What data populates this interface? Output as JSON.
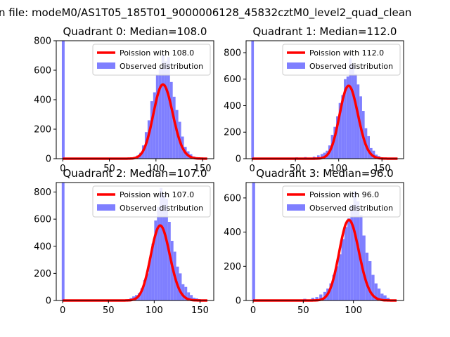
{
  "suptitle": "n file: modeM0/AS1T05_185T01_9000006128_45832cztM0_level2_quad_clean",
  "colors": {
    "hist": "#7f7fff",
    "curve": "#ff0000"
  },
  "chart_data": [
    {
      "type": "histogram",
      "title": "Quadrant 0: Median=108.0",
      "median": 108.0,
      "xlim": [
        -7,
        162
      ],
      "ylim": [
        0,
        800
      ],
      "xticks": [
        0,
        50,
        100,
        150
      ],
      "yticks": [
        0,
        200,
        400,
        600,
        800
      ],
      "legend": [
        "Poission with 108.0",
        "Observed distribution"
      ],
      "legend_position": "upper right",
      "zero_bin": 800,
      "bin_width": 3,
      "bins": [
        [
          70,
          5
        ],
        [
          73,
          8
        ],
        [
          76,
          12
        ],
        [
          79,
          22
        ],
        [
          82,
          40
        ],
        [
          85,
          90
        ],
        [
          88,
          180
        ],
        [
          91,
          260
        ],
        [
          94,
          390
        ],
        [
          97,
          450
        ],
        [
          100,
          570
        ],
        [
          103,
          610
        ],
        [
          106,
          700
        ],
        [
          109,
          660
        ],
        [
          112,
          690
        ],
        [
          115,
          520
        ],
        [
          118,
          420
        ],
        [
          121,
          330
        ],
        [
          124,
          250
        ],
        [
          127,
          150
        ],
        [
          130,
          80
        ],
        [
          133,
          50
        ],
        [
          136,
          30
        ],
        [
          139,
          15
        ],
        [
          142,
          10
        ],
        [
          145,
          5
        ],
        [
          148,
          3
        ],
        [
          151,
          2
        ]
      ]
    },
    {
      "type": "histogram",
      "title": "Quadrant 1: Median=112.0",
      "median": 112.0,
      "xlim": [
        -7,
        175
      ],
      "ylim": [
        0,
        890
      ],
      "xticks": [
        0,
        50,
        100,
        150
      ],
      "yticks": [
        0,
        200,
        400,
        600,
        800
      ],
      "legend": [
        "Poission with 112.0",
        "Observed distribution"
      ],
      "legend_position": "upper right",
      "zero_bin": 890,
      "bin_width": 3,
      "bins": [
        [
          20,
          3
        ],
        [
          30,
          5
        ],
        [
          40,
          8
        ],
        [
          50,
          10
        ],
        [
          60,
          12
        ],
        [
          70,
          15
        ],
        [
          75,
          25
        ],
        [
          79,
          35
        ],
        [
          82,
          45
        ],
        [
          85,
          60
        ],
        [
          88,
          100
        ],
        [
          91,
          180
        ],
        [
          94,
          240
        ],
        [
          97,
          320
        ],
        [
          100,
          420
        ],
        [
          103,
          480
        ],
        [
          106,
          600
        ],
        [
          109,
          620
        ],
        [
          112,
          760
        ],
        [
          115,
          710
        ],
        [
          118,
          640
        ],
        [
          121,
          560
        ],
        [
          124,
          470
        ],
        [
          127,
          360
        ],
        [
          130,
          230
        ],
        [
          133,
          170
        ],
        [
          136,
          80
        ],
        [
          139,
          60
        ],
        [
          142,
          30
        ],
        [
          145,
          20
        ],
        [
          148,
          10
        ],
        [
          151,
          8
        ],
        [
          154,
          5
        ],
        [
          157,
          3
        ],
        [
          160,
          2
        ]
      ]
    },
    {
      "type": "histogram",
      "title": "Quadrant 2: Median=107.0",
      "median": 107.0,
      "xlim": [
        -7,
        165
      ],
      "ylim": [
        0,
        870
      ],
      "xticks": [
        0,
        50,
        100,
        150
      ],
      "yticks": [
        0,
        200,
        400,
        600,
        800
      ],
      "legend": [
        "Poission with 107.0",
        "Observed distribution"
      ],
      "legend_position": "upper right",
      "zero_bin": 870,
      "bin_width": 3,
      "bins": [
        [
          70,
          10
        ],
        [
          73,
          18
        ],
        [
          76,
          30
        ],
        [
          79,
          40
        ],
        [
          82,
          55
        ],
        [
          85,
          90
        ],
        [
          88,
          150
        ],
        [
          91,
          200
        ],
        [
          94,
          310
        ],
        [
          97,
          420
        ],
        [
          100,
          590
        ],
        [
          103,
          690
        ],
        [
          106,
          830
        ],
        [
          109,
          780
        ],
        [
          112,
          750
        ],
        [
          115,
          580
        ],
        [
          118,
          440
        ],
        [
          121,
          360
        ],
        [
          124,
          250
        ],
        [
          127,
          200
        ],
        [
          130,
          120
        ],
        [
          133,
          100
        ],
        [
          136,
          60
        ],
        [
          139,
          40
        ],
        [
          142,
          20
        ],
        [
          145,
          15
        ],
        [
          148,
          10
        ],
        [
          151,
          5
        ],
        [
          154,
          3
        ],
        [
          157,
          2
        ]
      ]
    },
    {
      "type": "histogram",
      "title": "Quadrant 3: Median=96.0",
      "median": 96.0,
      "xlim": [
        -7,
        150
      ],
      "ylim": [
        0,
        690
      ],
      "xticks": [
        0,
        50,
        100
      ],
      "yticks": [
        0,
        200,
        400,
        600
      ],
      "legend": [
        "Poission with 96.0",
        "Observed distribution"
      ],
      "legend_position": "upper right",
      "zero_bin": 690,
      "bin_width": 3,
      "bins": [
        [
          20,
          3
        ],
        [
          30,
          5
        ],
        [
          40,
          6
        ],
        [
          50,
          10
        ],
        [
          58,
          15
        ],
        [
          62,
          20
        ],
        [
          66,
          35
        ],
        [
          70,
          50
        ],
        [
          73,
          70
        ],
        [
          76,
          100
        ],
        [
          79,
          150
        ],
        [
          82,
          200
        ],
        [
          85,
          270
        ],
        [
          88,
          360
        ],
        [
          91,
          430
        ],
        [
          94,
          480
        ],
        [
          97,
          560
        ],
        [
          100,
          640
        ],
        [
          103,
          580
        ],
        [
          106,
          500
        ],
        [
          109,
          380
        ],
        [
          112,
          280
        ],
        [
          115,
          230
        ],
        [
          118,
          150
        ],
        [
          121,
          100
        ],
        [
          124,
          70
        ],
        [
          127,
          40
        ],
        [
          130,
          30
        ],
        [
          133,
          15
        ],
        [
          136,
          5
        ]
      ]
    }
  ]
}
